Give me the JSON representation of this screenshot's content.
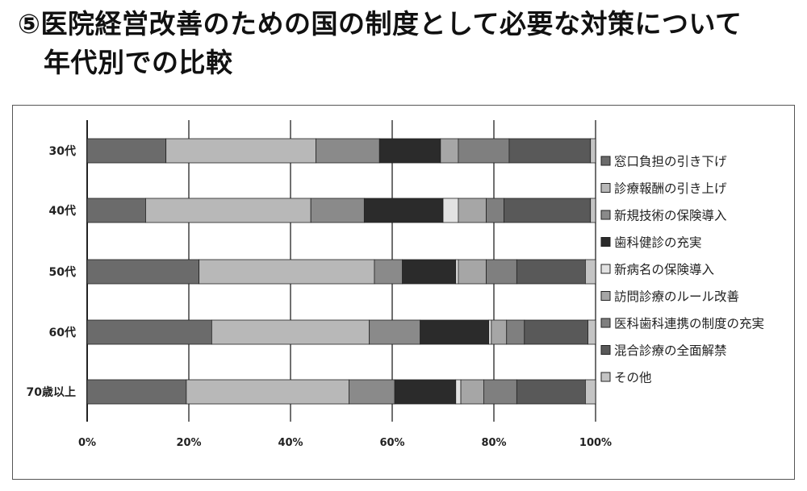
{
  "title": {
    "line1": "⑤医院経営改善のための国の制度として必要な対策について",
    "line2": "年代別での比較"
  },
  "chart_data": {
    "type": "bar",
    "orientation": "horizontal",
    "stacked": true,
    "categories": [
      "30代",
      "40代",
      "50代",
      "60代",
      "70歳以上"
    ],
    "xlim": [
      0,
      100
    ],
    "xticks": [
      "0%",
      "20%",
      "40%",
      "60%",
      "80%",
      "100%"
    ],
    "grid": true,
    "legend_position": "right",
    "series": [
      {
        "name": "窓口負担の引き下げ",
        "color": "#6b6b6b",
        "values": [
          15.5,
          11.5,
          22,
          24.5,
          19.5
        ]
      },
      {
        "name": "診療報酬の引き上げ",
        "color": "#b8b8b8",
        "values": [
          29.5,
          32.5,
          34.5,
          31,
          32
        ]
      },
      {
        "name": "新規技術の保険導入",
        "color": "#8a8a8a",
        "values": [
          12.5,
          10.5,
          5.5,
          10,
          9
        ]
      },
      {
        "name": "歯科健診の充実",
        "color": "#2b2b2b",
        "values": [
          12,
          15.5,
          10.5,
          13.5,
          12
        ]
      },
      {
        "name": "新病名の保険導入",
        "color": "#e2e2e2",
        "values": [
          0,
          3,
          0.5,
          0.5,
          1
        ]
      },
      {
        "name": "訪問診療のルール改善",
        "color": "#a6a6a6",
        "values": [
          3.5,
          5.5,
          5.5,
          3,
          4.5
        ]
      },
      {
        "name": "医科歯科連携の制度の充実",
        "color": "#7f7f7f",
        "values": [
          10,
          3.5,
          6,
          3.5,
          6.5
        ]
      },
      {
        "name": "混合診療の全面解禁",
        "color": "#595959",
        "values": [
          16,
          17,
          13.5,
          12.5,
          13.5
        ]
      },
      {
        "name": "その他",
        "color": "#c4c4c4",
        "values": [
          1,
          1,
          2,
          1.5,
          2
        ]
      }
    ]
  }
}
